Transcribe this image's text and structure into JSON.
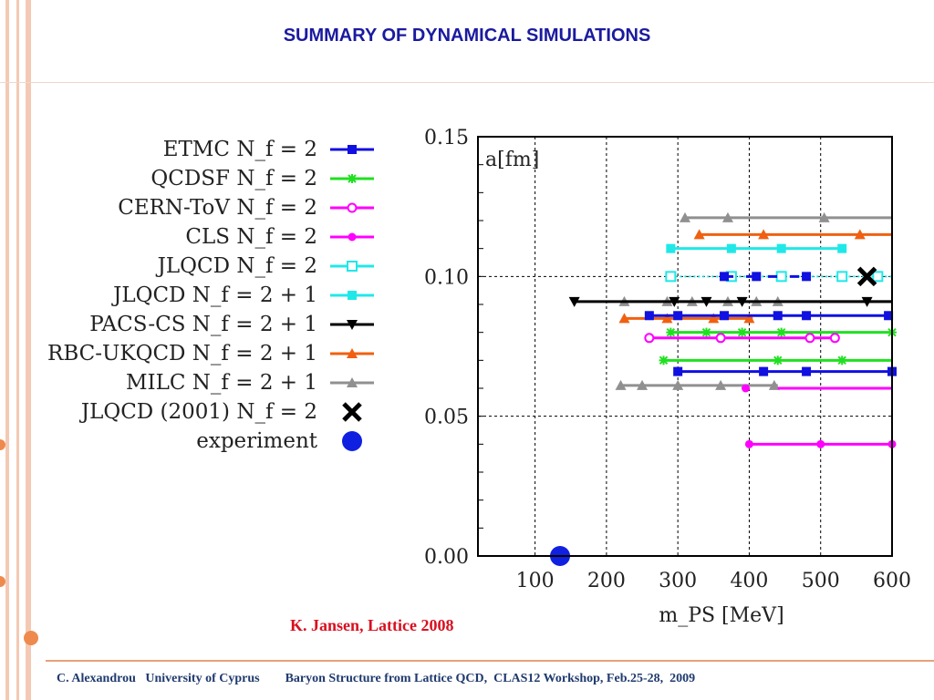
{
  "slide": {
    "title": "SUMMARY OF DYNAMICAL SIMULATIONS",
    "credit": "K. Jansen, Lattice 2008",
    "footer": "C. Alexandrou   University of Cyprus        Baryon Structure from Lattice QCD,  CLAS12 Workshop, Feb.25-28,  2009"
  },
  "legend": [
    {
      "label": "ETMC  N_f = 2",
      "color": "#1010e0",
      "marker": "square"
    },
    {
      "label": "QCDSF  N_f = 2",
      "color": "#20e020",
      "marker": "asterisk"
    },
    {
      "label": "CERN-ToV  N_f = 2",
      "color": "#ff00ff",
      "marker": "open-circle"
    },
    {
      "label": "CLS  N_f = 2",
      "color": "#ff00ff",
      "marker": "filled-circle"
    },
    {
      "label": "JLQCD  N_f = 2",
      "color": "#20e8e8",
      "marker": "open-square"
    },
    {
      "label": "JLQCD  N_f = 2 + 1",
      "color": "#20e8e8",
      "marker": "square"
    },
    {
      "label": "PACS-CS  N_f = 2 + 1",
      "color": "#000000",
      "marker": "triangle-down"
    },
    {
      "label": "RBC-UKQCD  N_f = 2 + 1",
      "color": "#f06010",
      "marker": "triangle-up"
    },
    {
      "label": "MILC  N_f = 2 + 1",
      "color": "#909090",
      "marker": "triangle-up"
    },
    {
      "label": "JLQCD (2001)   N_f = 2",
      "color": "#000000",
      "marker": "cross"
    },
    {
      "label": "experiment",
      "color": "#1020e0",
      "marker": "big-circle"
    }
  ],
  "chart_data": {
    "type": "scatter",
    "title": "",
    "xlabel": "m_PS  [MeV]",
    "ylabel": "a[fm]",
    "xlim": [
      20,
      600
    ],
    "ylim": [
      0,
      0.15
    ],
    "xticks": [
      100,
      200,
      300,
      400,
      500,
      600
    ],
    "yticks": [
      "0.00",
      "0.05",
      "0.10",
      "0.15"
    ],
    "grid": true,
    "series": [
      {
        "name": "MILC  N_f = 2 + 1",
        "color": "#909090",
        "marker": "triangle-up",
        "style": "solid",
        "segments": [
          {
            "y": 0.121,
            "x": [
              310,
              370,
              505
            ],
            "line_to": 600
          },
          {
            "y": 0.091,
            "x": [
              225,
              285,
              320,
              370,
              410,
              440
            ],
            "line_to": 600
          },
          {
            "y": 0.061,
            "x": [
              220,
              250,
              300,
              360,
              435
            ],
            "line_to": 440
          }
        ]
      },
      {
        "name": "RBC-UKQCD  N_f = 2 + 1",
        "color": "#f06010",
        "marker": "triangle-up",
        "style": "solid",
        "segments": [
          {
            "y": 0.115,
            "x": [
              330,
              420,
              555
            ],
            "line_to": 600
          },
          {
            "y": 0.085,
            "x": [
              225,
              285,
              350,
              400
            ],
            "line_to": 405
          }
        ]
      },
      {
        "name": "JLQCD  N_f = 2 + 1",
        "color": "#20e8e8",
        "marker": "square",
        "style": "solid",
        "segments": [
          {
            "y": 0.11,
            "x": [
              290,
              375,
              445,
              530
            ],
            "line_to": 530
          }
        ]
      },
      {
        "name": "JLQCD  N_f = 2",
        "color": "#20e8e8",
        "marker": "open-square",
        "style": "dotted",
        "segments": [
          {
            "y": 0.1,
            "x": [
              290,
              375,
              445,
              530,
              580
            ],
            "line_to": 600
          }
        ]
      },
      {
        "name": "ETMC  N_f = 2",
        "color": "#1010e0",
        "marker": "square",
        "style": "solid",
        "segments": [
          {
            "y": 0.1,
            "x": [
              365,
              410,
              480
            ],
            "line_to": 480,
            "dashed": true
          },
          {
            "y": 0.086,
            "x": [
              260,
              300,
              365,
              440,
              480,
              595
            ],
            "line_to": 600
          },
          {
            "y": 0.066,
            "x": [
              300,
              420,
              480,
              600
            ],
            "line_to": 600
          }
        ]
      },
      {
        "name": "PACS-CS  N_f = 2 + 1",
        "color": "#000000",
        "marker": "triangle-down",
        "style": "solid",
        "segments": [
          {
            "y": 0.091,
            "x": [
              155,
              295,
              340,
              390,
              565
            ],
            "line_to": 600
          }
        ]
      },
      {
        "name": "QCDSF  N_f = 2",
        "color": "#20e020",
        "marker": "asterisk",
        "style": "solid",
        "segments": [
          {
            "y": 0.08,
            "x": [
              290,
              340,
              390,
              445,
              600
            ],
            "line_to": 600
          },
          {
            "y": 0.07,
            "x": [
              280,
              440,
              530
            ],
            "line_to": 600
          }
        ]
      },
      {
        "name": "CERN-ToV  N_f = 2",
        "color": "#ff00ff",
        "marker": "open-circle",
        "style": "solid",
        "segments": [
          {
            "y": 0.078,
            "x": [
              260,
              360,
              485,
              520
            ],
            "line_to": 520
          }
        ]
      },
      {
        "name": "CLS  N_f = 2",
        "color": "#ff00ff",
        "marker": "filled-circle",
        "style": "solid",
        "segments": [
          {
            "y": 0.06,
            "x": [
              395
            ],
            "line_to": 600,
            "line_from": 440
          },
          {
            "y": 0.04,
            "x": [
              400,
              500,
              600
            ],
            "line_to": 600
          }
        ]
      },
      {
        "name": "JLQCD (2001)   N_f = 2",
        "color": "#000000",
        "marker": "cross",
        "style": "none",
        "segments": [
          {
            "y": 0.1,
            "x": [
              565
            ],
            "line_to": 565
          }
        ]
      },
      {
        "name": "experiment",
        "color": "#1020e0",
        "marker": "big-circle",
        "style": "none",
        "segments": [
          {
            "y": 0.0,
            "x": [
              135
            ],
            "line_to": 135
          }
        ]
      }
    ]
  }
}
